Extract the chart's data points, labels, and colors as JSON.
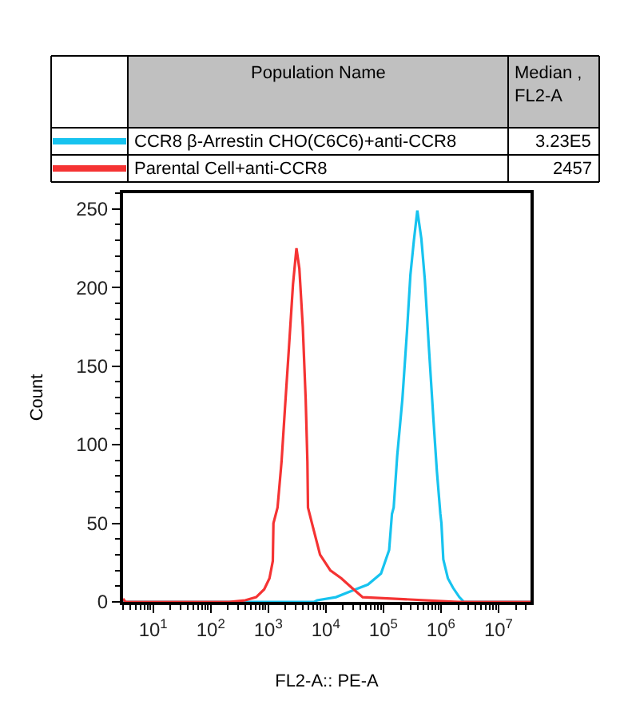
{
  "chart_data": {
    "type": "line",
    "xlabel": "FL2-A:: PE-A",
    "ylabel": "Count",
    "log": "x",
    "legend": "top",
    "xlim": [
      3,
      36000000
    ],
    "ylim": [
      0,
      260
    ],
    "xticks": [
      {
        "value": 10,
        "label": "10$^{1}$"
      },
      {
        "value": 100,
        "label": "10$^{2}$"
      },
      {
        "value": 1000,
        "label": "10$^{3}$"
      },
      {
        "value": 10000,
        "label": "10$^{4}$"
      },
      {
        "value": 100000,
        "label": "10$^{5}$"
      },
      {
        "value": 1000000,
        "label": "10$^{6}$"
      },
      {
        "value": 10000000,
        "label": "10$^{7}$"
      }
    ],
    "yticks": [
      0,
      50,
      100,
      150,
      200,
      250
    ],
    "annotations": [
      "Population Name",
      "Median , FL2-A",
      "3.23E5",
      "2457"
    ],
    "series": [
      {
        "name": "CCR8 β-Arrestin CHO(C6C6)+anti-CCR8",
        "color": "#17c3ef",
        "x": [
          3,
          6300,
          7100,
          15000,
          28000,
          54000,
          91000,
          126000,
          141000,
          151000,
          174000,
          214000,
          257000,
          295000,
          339000,
          389000,
          457000,
          525000,
          617000,
          741000,
          851000,
          977000,
          1020000,
          1100000,
          1320000,
          1620000,
          2090000,
          2510000,
          36000000
        ],
        "values": [
          0,
          0,
          1,
          3,
          7,
          11,
          18,
          33,
          56,
          60,
          93,
          129,
          172,
          208,
          230,
          249,
          231,
          205,
          162,
          116,
          83,
          56,
          50,
          27,
          15,
          9,
          3,
          0,
          0
        ]
      },
      {
        "name": "Parental Cell+anti-CCR8",
        "color": "#f53333",
        "x": [
          3,
          3.3,
          209,
          398,
          617,
          851,
          1050,
          1200,
          1230,
          1450,
          1700,
          1950,
          2290,
          2690,
          3090,
          3470,
          3980,
          4470,
          4790,
          4900,
          5750,
          7940,
          12000,
          18600,
          28200,
          43700,
          2000000,
          36000000
        ],
        "values": [
          2,
          0,
          0,
          1,
          3,
          8,
          15,
          26,
          50,
          60,
          89,
          123,
          162,
          202,
          225,
          212,
          175,
          129,
          89,
          60,
          50,
          30,
          20,
          15,
          9,
          3,
          0,
          0
        ]
      }
    ]
  }
}
